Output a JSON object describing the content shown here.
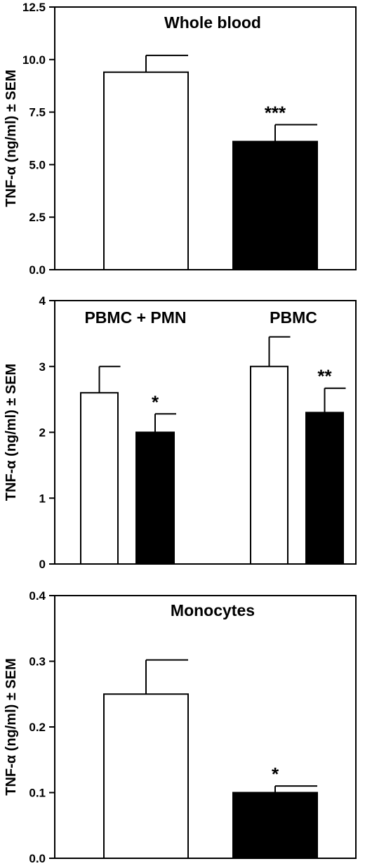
{
  "chart_data": [
    {
      "type": "bar",
      "title": "",
      "ylabel": "TNF-α (ng/ml) ± SEM",
      "ylim": [
        0,
        12.5
      ],
      "yticks": [
        "0.0",
        "2.5",
        "5.0",
        "7.5",
        "10.0",
        "12.5"
      ],
      "yticks_values": [
        0,
        2.5,
        5,
        7.5,
        10,
        12.5
      ],
      "groups": [
        {
          "label": "Whole blood",
          "bars": [
            {
              "value": 9.4,
              "sem": 0.8,
              "fill": "#ffffff",
              "sig": ""
            },
            {
              "value": 6.1,
              "sem": 0.8,
              "fill": "#000000",
              "sig": "***"
            }
          ]
        }
      ]
    },
    {
      "type": "bar",
      "title": "",
      "ylabel": "TNF-α (ng/ml) ± SEM",
      "ylim": [
        0,
        4
      ],
      "yticks": [
        "0",
        "1",
        "2",
        "3",
        "4"
      ],
      "yticks_values": [
        0,
        1,
        2,
        3,
        4
      ],
      "groups": [
        {
          "label": "PBMC + PMN",
          "bars": [
            {
              "value": 2.6,
              "sem": 0.4,
              "fill": "#ffffff",
              "sig": ""
            },
            {
              "value": 2.0,
              "sem": 0.28,
              "fill": "#000000",
              "sig": "*"
            }
          ]
        },
        {
          "label": "PBMC",
          "bars": [
            {
              "value": 3.0,
              "sem": 0.45,
              "fill": "#ffffff",
              "sig": ""
            },
            {
              "value": 2.3,
              "sem": 0.37,
              "fill": "#000000",
              "sig": "**"
            }
          ]
        }
      ]
    },
    {
      "type": "bar",
      "title": "",
      "ylabel": "TNF-α (ng/ml) ± SEM",
      "ylim": [
        0,
        0.4
      ],
      "yticks": [
        "0.0",
        "0.1",
        "0.2",
        "0.3",
        "0.4"
      ],
      "yticks_values": [
        0,
        0.1,
        0.2,
        0.3,
        0.4
      ],
      "groups": [
        {
          "label": "Monocytes",
          "bars": [
            {
              "value": 0.25,
              "sem": 0.052,
              "fill": "#ffffff",
              "sig": ""
            },
            {
              "value": 0.1,
              "sem": 0.01,
              "fill": "#000000",
              "sig": "*"
            }
          ]
        }
      ]
    }
  ]
}
